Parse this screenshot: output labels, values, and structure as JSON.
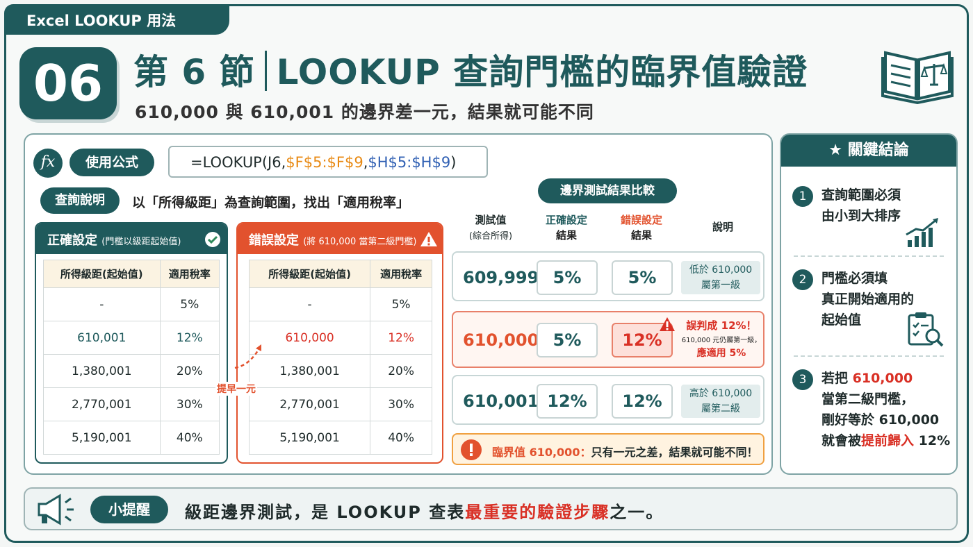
{
  "header": {
    "tag": "Excel LOOKUP 用法",
    "number": "06",
    "title_part1": "第 6 節",
    "title_part2": "LOOKUP 查詢門檻的臨界值驗證",
    "subtitle": "610,000 與 610,001 的邊界差一元，結果就可能不同"
  },
  "formula": {
    "label": "使用公式",
    "fx": "fx",
    "prefix": "=LOOKUP(J6,",
    "range1": "$F$5:$F$9",
    "comma": ",",
    "range2": "$H$5:$H$9",
    "suffix": ")"
  },
  "query": {
    "label": "查詢說明",
    "text": "以「所得級距」為查詢範圍，找出「適用稅率」"
  },
  "correct_table": {
    "title": "正確設定",
    "note": "(門檻以級距起始值)",
    "col1": "所得級距(起始值)",
    "col2": "適用稅率",
    "rows": [
      [
        "-",
        "5%"
      ],
      [
        "610,001",
        "12%"
      ],
      [
        "1,380,001",
        "20%"
      ],
      [
        "2,770,001",
        "30%"
      ],
      [
        "5,190,001",
        "40%"
      ]
    ],
    "accent": "#1f5a5c"
  },
  "wrong_table": {
    "title": "錯誤設定",
    "note": "(將 610,000 當第二級門檻)",
    "col1": "所得級距(起始值)",
    "col2": "適用稅率",
    "rows": [
      [
        "-",
        "5%"
      ],
      [
        "610,000",
        "12%"
      ],
      [
        "1,380,001",
        "20%"
      ],
      [
        "2,770,001",
        "30%"
      ],
      [
        "5,190,001",
        "40%"
      ]
    ],
    "accent": "#e2522e"
  },
  "arrow_label": "提早一元",
  "comparison": {
    "title": "邊界測試結果比較",
    "headers": {
      "test_line1": "測試值",
      "test_line2": "(綜合所得)",
      "correct_line1": "正確設定",
      "correct_line2": "結果",
      "wrong_line1": "錯誤設定",
      "wrong_line2": "結果",
      "note": "說明"
    },
    "rows": [
      {
        "value": "609,999",
        "correct": "5%",
        "wrong": "5%",
        "note1": "低於 610,000",
        "note2": "屬第一級"
      },
      {
        "value": "610,000",
        "correct": "5%",
        "wrong": "12%",
        "note1": "誤判成 12%！",
        "note2": "610,000 元仍屬第一級，",
        "note3": "應適用 5%"
      },
      {
        "value": "610,001",
        "correct": "12%",
        "wrong": "12%",
        "note1": "高於 610,000",
        "note2": "屬第二級"
      }
    ],
    "critical_label": "臨界值 610,000：",
    "critical_text": "只有一元之差，結果就可能不同！"
  },
  "conclusion": {
    "title": "關鍵結論",
    "items": [
      {
        "num": "1",
        "line1": "查詢範圍必須",
        "line2": "由小到大排序"
      },
      {
        "num": "2",
        "line1": "門檻必須填",
        "line2": "真正開始適用的",
        "line3": "起始值"
      },
      {
        "num": "3",
        "line1a": "若把 ",
        "line1b": "610,000",
        "line2": "當第二級門檻，",
        "line3": "剛好等於 610,000",
        "line4a": "就會被",
        "line4b": "提前歸入",
        "line4c": " 12%"
      }
    ]
  },
  "tip": {
    "label": "小提醒",
    "text_a": "級距邊界測試，是 LOOKUP 查表",
    "text_b": "最重要的驗證步驟",
    "text_c": "之一。"
  }
}
